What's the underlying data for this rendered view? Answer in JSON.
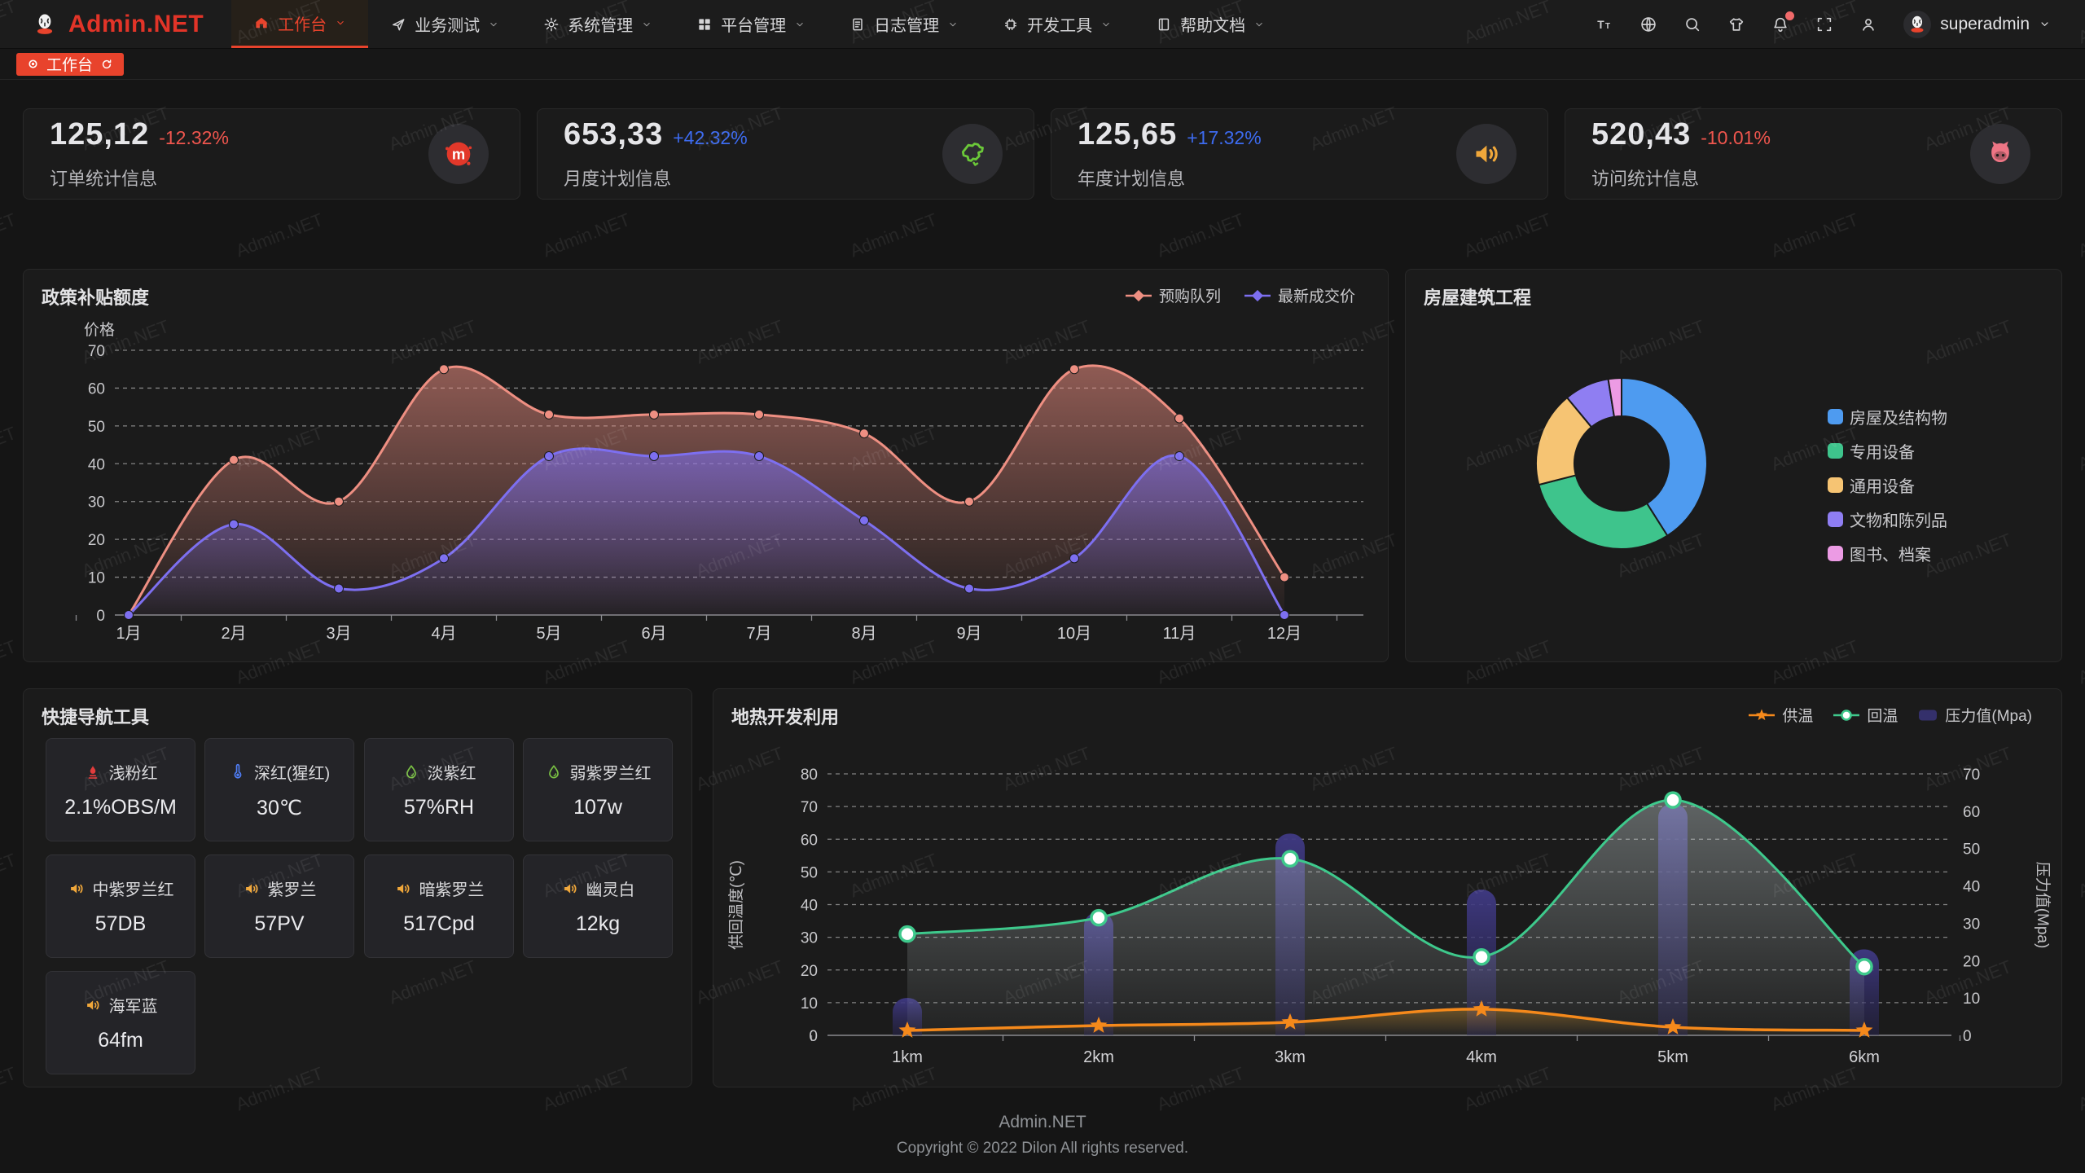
{
  "watermark": "Admin.NET",
  "navbar": {
    "logo_text": "Admin.NET",
    "menu": [
      {
        "label": "工作台",
        "icon": "home-icon",
        "active": true
      },
      {
        "label": "业务测试",
        "icon": "send-icon",
        "active": false
      },
      {
        "label": "系统管理",
        "icon": "gear-icon",
        "active": false
      },
      {
        "label": "平台管理",
        "icon": "grid-icon",
        "active": false
      },
      {
        "label": "日志管理",
        "icon": "log-icon",
        "active": false
      },
      {
        "label": "开发工具",
        "icon": "cpu-icon",
        "active": false
      },
      {
        "label": "帮助文档",
        "icon": "book-icon",
        "active": false
      }
    ],
    "tools": [
      {
        "icon": "font-size-icon",
        "badge": false
      },
      {
        "icon": "language-icon",
        "badge": false
      },
      {
        "icon": "search-icon",
        "badge": false
      },
      {
        "icon": "theme-icon",
        "badge": false
      },
      {
        "icon": "notification-icon",
        "badge": true
      },
      {
        "icon": "fullscreen-icon",
        "badge": false
      },
      {
        "icon": "user-icon",
        "badge": false
      }
    ],
    "username": "superadmin"
  },
  "tabbar": {
    "tabs": [
      {
        "label": "工作台",
        "active": true
      }
    ]
  },
  "stat_cards": [
    {
      "value": "125,12",
      "delta": "-12.32%",
      "trend": "down",
      "label": "订单统计信息",
      "icon": "meetup-icon",
      "icon_color": "#e2382a"
    },
    {
      "value": "653,33",
      "delta": "+42.32%",
      "trend": "up",
      "label": "月度计划信息",
      "icon": "china-map-icon",
      "icon_color": "#6bc839"
    },
    {
      "value": "125,65",
      "delta": "+17.32%",
      "trend": "up",
      "label": "年度计划信息",
      "icon": "speaker-icon",
      "icon_color": "#f0a73a"
    },
    {
      "value": "520,43",
      "delta": "-10.01%",
      "trend": "down",
      "label": "访问统计信息",
      "icon": "cat-icon",
      "icon_color": "#ee7585"
    }
  ],
  "chart_data": [
    {
      "id": "subsidy",
      "type": "line",
      "title": "政策补贴额度",
      "ylabel": "价格",
      "categories": [
        "1月",
        "2月",
        "3月",
        "4月",
        "5月",
        "6月",
        "7月",
        "8月",
        "9月",
        "10月",
        "11月",
        "12月"
      ],
      "ylim": [
        0,
        70
      ],
      "grid": "dashed",
      "legend_position": "top-right",
      "series": [
        {
          "name": "预购队列",
          "color": "#ee8f82",
          "values": [
            0,
            41,
            30,
            65,
            53,
            53,
            53,
            48,
            30,
            65,
            52,
            10
          ]
        },
        {
          "name": "最新成交价",
          "color": "#7d6ff0",
          "values": [
            0,
            24,
            7,
            15,
            42,
            42,
            42,
            25,
            7,
            15,
            42,
            0
          ]
        }
      ]
    },
    {
      "id": "building",
      "type": "pie",
      "title": "房屋建筑工程",
      "donut": true,
      "legend_position": "right",
      "slices": [
        {
          "label": "房屋及结构物",
          "value": 41,
          "color": "#4e9bf0"
        },
        {
          "label": "专用设备",
          "value": 30,
          "color": "#3ec48c"
        },
        {
          "label": "通用设备",
          "value": 18,
          "color": "#f6c473"
        },
        {
          "label": "文物和陈列品",
          "value": 8.5,
          "color": "#8f7ef2"
        },
        {
          "label": "图书、档案",
          "value": 2.5,
          "color": "#ec9be4"
        }
      ]
    },
    {
      "id": "geothermal",
      "type": "line+bar",
      "title": "地热开发利用",
      "categories": [
        "1km",
        "2km",
        "3km",
        "4km",
        "5km",
        "6km"
      ],
      "ylabel_left": "供回温度(℃)",
      "ylabel_right": "压力值(Mpa)",
      "ylim_left": [
        0,
        80
      ],
      "ylim_right": [
        0,
        70
      ],
      "legend_position": "top-right",
      "series": [
        {
          "name": "供温",
          "type": "line",
          "axis": "left",
          "marker": "star",
          "color": "#f5891b",
          "values": [
            1.5,
            3,
            4,
            8,
            2.5,
            1.5
          ]
        },
        {
          "name": "回温",
          "type": "line",
          "axis": "left",
          "marker": "circle",
          "color": "#3ec98c",
          "values": [
            31,
            36,
            54,
            24,
            72,
            21
          ]
        },
        {
          "name": "压力值(Mpa)",
          "type": "bar",
          "axis": "right",
          "color": "#34306b",
          "values": [
            10,
            33,
            54,
            39,
            62,
            23
          ]
        }
      ]
    }
  ],
  "quick_nav": {
    "title": "快捷导航工具",
    "items": [
      {
        "name": "浅粉红",
        "value": "2.1%OBS/M",
        "icon": "flame-icon",
        "icon_color": "#e23c3c"
      },
      {
        "name": "深红(猩红)",
        "value": "30℃",
        "icon": "thermometer-icon",
        "icon_color": "#4f7df5"
      },
      {
        "name": "淡紫红",
        "value": "57%RH",
        "icon": "drop-icon",
        "icon_color": "#7ac143"
      },
      {
        "name": "弱紫罗兰红",
        "value": "107w",
        "icon": "drop-icon",
        "icon_color": "#7ac143"
      },
      {
        "name": "中紫罗兰红",
        "value": "57DB",
        "icon": "speaker-icon",
        "icon_color": "#f0a73a"
      },
      {
        "name": "紫罗兰",
        "value": "57PV",
        "icon": "speaker-icon",
        "icon_color": "#f0a73a"
      },
      {
        "name": "暗紫罗兰",
        "value": "517Cpd",
        "icon": "speaker-icon",
        "icon_color": "#f0a73a"
      },
      {
        "name": "幽灵白",
        "value": "12kg",
        "icon": "speaker-icon",
        "icon_color": "#f0a73a"
      },
      {
        "name": "海军蓝",
        "value": "64fm",
        "icon": "speaker-icon",
        "icon_color": "#f0a73a"
      }
    ]
  },
  "footer": {
    "line1": "Admin.NET",
    "line2": "Copyright © 2022 Dilon All rights reserved."
  }
}
